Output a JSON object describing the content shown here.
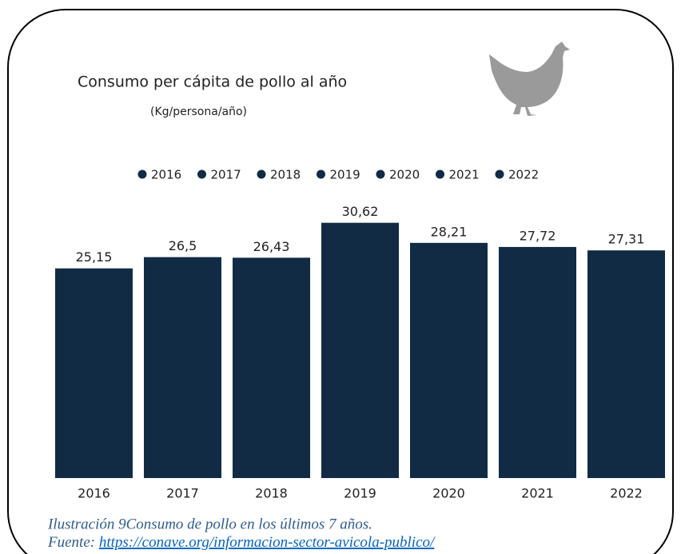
{
  "chart_data": {
    "type": "bar",
    "title": "Consumo per cápita de pollo al año",
    "subtitle": "(Kg/persona/año)",
    "categories": [
      "2016",
      "2017",
      "2018",
      "2019",
      "2020",
      "2021",
      "2022"
    ],
    "values": [
      25.15,
      26.5,
      26.43,
      30.62,
      28.21,
      27.72,
      27.31
    ],
    "value_labels": [
      "25,15",
      "26,5",
      "26,43",
      "30,62",
      "28,21",
      "27,72",
      "27,31"
    ],
    "color": "#112b45",
    "ylim": [
      0,
      35
    ],
    "legend": "top"
  },
  "caption": {
    "text": "Ilustración 9Consumo de pollo en los últimos 7 años.",
    "source_prefix": "Fuente: ",
    "source_link": "https://conave.org/informacion-sector-avicola-publico/"
  }
}
